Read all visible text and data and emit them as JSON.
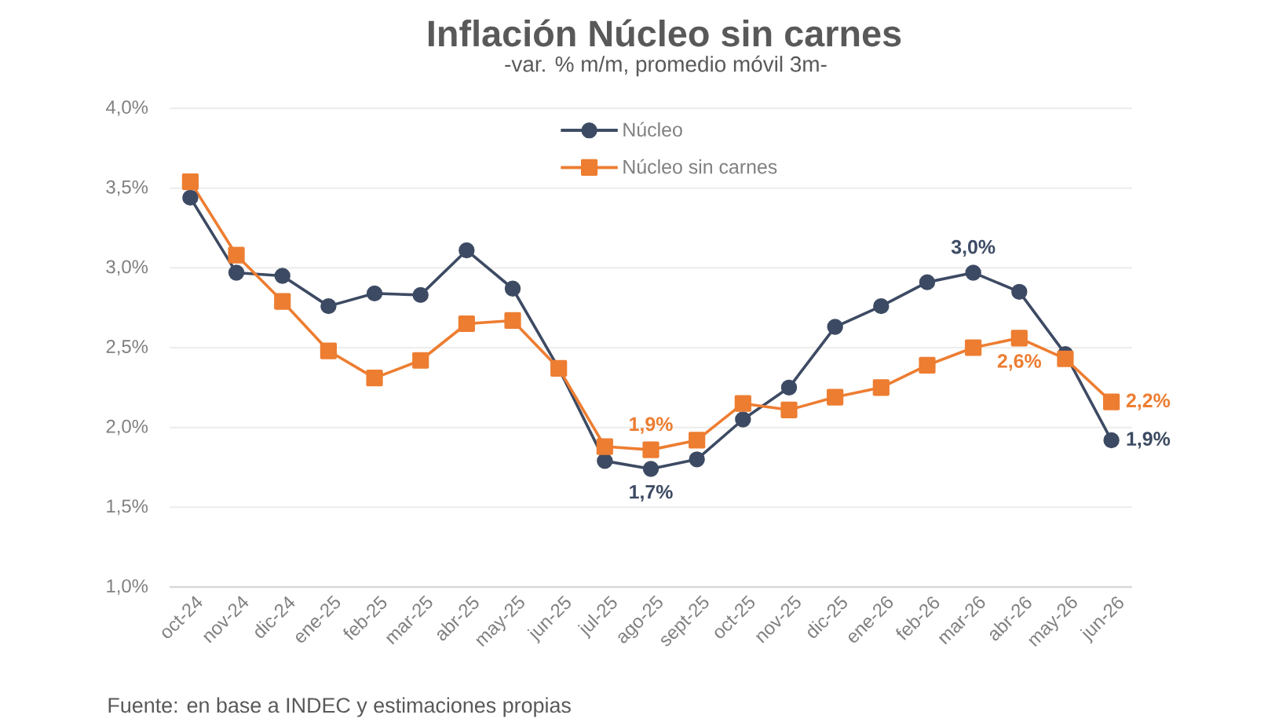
{
  "chart_data": {
    "type": "line",
    "title": "Inflación Núcleo sin carnes",
    "subtitle": "-var. % m/m, promedio móvil 3m-",
    "categories": [
      "oct-24",
      "nov-24",
      "dic-24",
      "ene-25",
      "feb-25",
      "mar-25",
      "abr-25",
      "may-25",
      "jun-25",
      "jul-25",
      "ago-25",
      "sept-25",
      "oct-25",
      "nov-25",
      "dic-25",
      "ene-26",
      "feb-26",
      "mar-26",
      "abr-26",
      "may-26",
      "jun-26"
    ],
    "series": [
      {
        "name": "Núcleo",
        "color": "#3d4a63",
        "marker": "circle",
        "values": [
          3.44,
          2.97,
          2.95,
          2.76,
          2.84,
          2.83,
          3.11,
          2.87,
          2.37,
          1.79,
          1.74,
          1.8,
          2.05,
          2.25,
          2.63,
          2.76,
          2.91,
          2.97,
          2.85,
          2.46,
          1.92
        ],
        "value_labels": [
          null,
          null,
          null,
          null,
          null,
          null,
          null,
          null,
          null,
          null,
          "1,7%",
          null,
          null,
          null,
          null,
          null,
          null,
          "3,0%",
          null,
          null,
          "1,9%"
        ]
      },
      {
        "name": "Núcleo sin carnes",
        "color": "#ed7d31",
        "marker": "square",
        "values": [
          3.54,
          3.08,
          2.79,
          2.48,
          2.31,
          2.42,
          2.65,
          2.67,
          2.37,
          1.88,
          1.86,
          1.92,
          2.15,
          2.11,
          2.19,
          2.25,
          2.39,
          2.5,
          2.56,
          2.43,
          2.16
        ],
        "value_labels": [
          null,
          null,
          null,
          null,
          null,
          null,
          null,
          null,
          null,
          null,
          "1,9%",
          null,
          null,
          null,
          null,
          null,
          null,
          null,
          "2,6%",
          null,
          "2,2%"
        ]
      }
    ],
    "ylim": [
      1.0,
      4.0
    ],
    "yticks": [
      {
        "value": 1.0,
        "label": "1,0%"
      },
      {
        "value": 1.5,
        "label": "1,5%"
      },
      {
        "value": 2.0,
        "label": "2,0%"
      },
      {
        "value": 2.5,
        "label": "2,5%"
      },
      {
        "value": 3.0,
        "label": "3,0%"
      },
      {
        "value": 3.5,
        "label": "3,5%"
      },
      {
        "value": 4.0,
        "label": "4,0%"
      }
    ],
    "grid": "y",
    "legend": "top",
    "annotations": [
      "Fuente: en base a INDEC y estimaciones propias"
    ]
  }
}
